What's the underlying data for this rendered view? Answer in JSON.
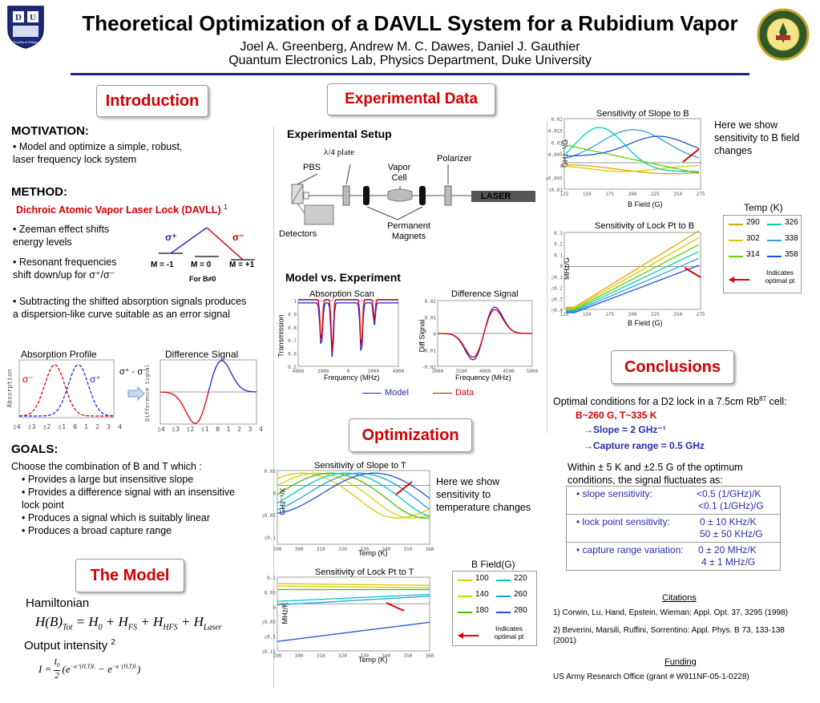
{
  "title": "Theoretical Optimization of a DAVLL System for a Rubidium Vapor",
  "authors": "Joel A. Greenberg, Andrew M. C. Dawes, Daniel J. Gauthier",
  "affiliation": "Quantum Electronics Lab, Physics Department, Duke University",
  "logo_left": {
    "icon": "duke-shield-logo",
    "letters": "D U",
    "motto": "Eruditio et Religio"
  },
  "logo_right": {
    "icon": "army-research-seal-logo"
  },
  "intro": {
    "heading": "Introduction",
    "motivation_title": "MOTIVATION:",
    "motivation": "• Model and optimize a simple, robust, laser frequency lock system",
    "method_title": "METHOD:",
    "method_sub": "Dichroic Atomic Vapor Laser Lock (DAVLL)",
    "method_ref": "1",
    "bullet1": "• Zeeman effect shifts energy levels",
    "bullet2": "• Resonant frequencies shift down/up for σ⁺/σ⁻",
    "bullet3": "• Subtracting the shifted absorption signals produces a dispersion-like curve suitable as an error signal",
    "sigma_plus": "σ⁺",
    "sigma_minus": "σ⁻",
    "m_labels": [
      "M = -1",
      "M = 0",
      "M = +1"
    ],
    "b_note": "For B≠0",
    "abs_profile_title": "Absorption Profile",
    "diff_signal_title": "Difference Signal",
    "abs_ylabel": "Absorption",
    "diff_ylabel": "Difference Signal",
    "diff_formula": "σ⁺ - σ⁻",
    "ticks": [
      "▯4",
      "▯3",
      "▯2",
      "▯1",
      "0",
      "1",
      "2",
      "3",
      "4"
    ],
    "goals_title": "GOALS:",
    "goals_intro": "Choose the combination of B and T which :",
    "goals": [
      "• Provides a large but insensitive slope",
      "• Provides a difference signal with an insensitive lock point",
      "• Produces a signal which is suitably linear",
      "• Produces a broad capture range"
    ]
  },
  "model": {
    "heading": "The Model",
    "hamiltonian_label": "Hamiltonian",
    "hamiltonian": "H(B)Tot = H0 + HFS + HHFS + HLaser",
    "output_label": "Output intensity",
    "output_ref": "2",
    "output_formula": "I = (I0/2)(e^(−a⁺(H,T)L) − e^(−a⁻(H,T)L))"
  },
  "experimental": {
    "heading": "Experimental Data",
    "setup_title": "Experimental Setup",
    "labels": {
      "waveplate": "λ/4 plate",
      "pbs": "PBS",
      "cell": "Vapor Cell",
      "polarizer": "Polarizer",
      "laser": "LASER",
      "detectors": "Detectors",
      "magnets": "Permanent Magnets"
    },
    "mve_title": "Model vs. Experiment",
    "abs_scan_title": "Absorption Scan",
    "diff_title": "Difference Signal",
    "abs_ylabel": "Transmission",
    "diff_ylabel": "Diff Signal",
    "xlabel": "Frequency (MHz)",
    "legend_model": "Model",
    "legend_data": "Data",
    "abs_xticks": [
      "4000",
      "2000",
      "0",
      "2000",
      "4000"
    ],
    "abs_yticks": [
      "1",
      "0.9",
      "0.8",
      "0.7",
      "0.6",
      "0.5"
    ],
    "diff_xticks": [
      "3000",
      "3500",
      "4000",
      "4500",
      "5000"
    ],
    "diff_yticks": [
      "0.02",
      "0.01",
      "0",
      "-0.01",
      "-0.02"
    ]
  },
  "optimization": {
    "heading": "Optimization",
    "slope_t_title": "Sensitivity of Slope to T",
    "slope_t_ylabel": "GHz⁻¹/K",
    "slope_t_yticks": [
      "0.05",
      "0",
      "▯0.05",
      "▯0.1"
    ],
    "lock_t_title": "Sensitivity of Lock Pt to T",
    "lock_t_ylabel": "MHz/K",
    "lock_t_yticks": [
      "0.1",
      "0.05",
      "0",
      "▯0.05",
      "▯0.1",
      "▯0.15"
    ],
    "temp_xticks": [
      "290",
      "300",
      "310",
      "320",
      "330",
      "340",
      "350",
      "360"
    ],
    "temp_xlabel": "Temp (K)",
    "note": "Here we show sensitivity to temperature changes",
    "legend_title": "B Field(G)",
    "legend_items": [
      "100",
      "220",
      "140",
      "260",
      "180",
      "280"
    ],
    "legend_colors": [
      "#e8c100",
      "#00c8c8",
      "#c8d800",
      "#1aa0e0",
      "#40c000",
      "#1e50d8"
    ],
    "indicates": "Indicates optimal pt"
  },
  "bsens": {
    "slope_b_title": "Sensitivity of Slope to B",
    "slope_b_ylabel": "GHz⁻¹/G",
    "slope_b_yticks": [
      "0.02",
      "0.015",
      "0.01",
      "0.005",
      "0",
      "▯0.005",
      "▯0.01"
    ],
    "lock_b_title": "Sensitivity of Lock Pt to B",
    "lock_b_ylabel": "MHz/G",
    "lock_b_yticks": [
      "0.3",
      "0.2",
      "0.1",
      "0",
      "▯0.1",
      "▯0.2",
      "▯0.3",
      "▯0.4"
    ],
    "b_xticks": [
      "125",
      "150",
      "175",
      "200",
      "225",
      "250",
      "275"
    ],
    "b_xlabel": "B Field (G)",
    "note": "Here we show sensitivity to B field changes",
    "legend_title": "Temp (K)",
    "legend_items": [
      "290",
      "326",
      "302",
      "338",
      "314",
      "358"
    ],
    "legend_colors": [
      "#e8a000",
      "#00d0b0",
      "#d8c800",
      "#30a0e0",
      "#60d000",
      "#1e50d8"
    ],
    "indicates": "Indicates optimal pt"
  },
  "conclusions": {
    "heading": "Conclusions",
    "optimal": "Optimal conditions for a D2 lock in a 7.5cm Rb",
    "optimal_sup": "87",
    "optimal_end": " cell:",
    "bt": "B~260 G, T~335 K",
    "slope": "→Slope = 2 GHz⁻¹",
    "capture": "→Capture range = 0.5 GHz",
    "within": "Within ± 5 K and ±2.5 G of the optimum conditions, the signal fluctuates as:",
    "rows": [
      {
        "label": "• slope sensitivity:",
        "v1": "<0.5 (1/GHz)/K",
        "v2": "<0.1 (1/GHz)/G"
      },
      {
        "label": "• lock point sensitivity:",
        "v1": "0 ± 10 KHz/K",
        "v2": "50 ± 50 KHz/G"
      },
      {
        "label": "• capture range variation:",
        "v1": "0 ± 20 MHz/K",
        "v2": "4 ± 1 MHz/G"
      }
    ],
    "citations_title": "Citations",
    "cit1": "1) Corwin, Lu, Hand, Epstein, Wieman: Appl. Opt. 37, 3295 (1998)",
    "cit2": "2) Beverini, Marsili, Ruffini, Sorrentino: Appl. Phys. B 73, 133-138 (2001)",
    "funding_title": "Funding",
    "funding": "US Army Research Office (grant # W911NF-05-1-0228)"
  }
}
